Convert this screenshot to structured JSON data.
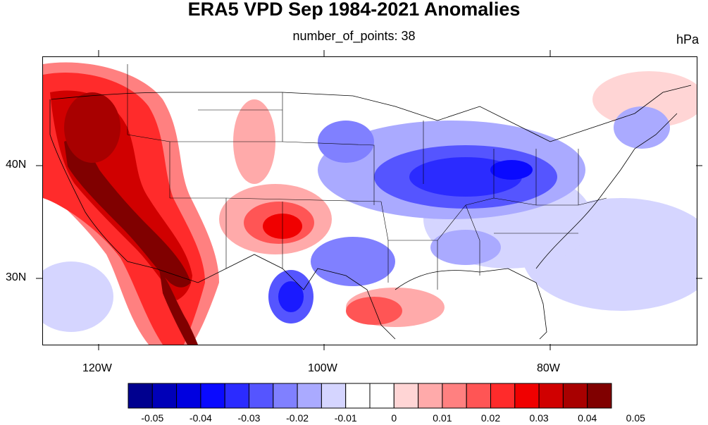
{
  "title": "ERA5 VPD Sep 1984-2021 Anomalies",
  "subtitle": "number_of_points: 38",
  "units": "hPa",
  "axes": {
    "lat_labels": [
      "40N",
      "30N"
    ],
    "lon_labels": [
      "120W",
      "100W",
      "80W"
    ]
  },
  "colorbar": {
    "colors": [
      "#00008f",
      "#0000b8",
      "#0000e0",
      "#0a0aff",
      "#2b2bff",
      "#5555ff",
      "#8080ff",
      "#aaaaff",
      "#d5d5ff",
      "#ffffff",
      "#ffffff",
      "#ffd5d5",
      "#ffaaaa",
      "#ff8080",
      "#ff5555",
      "#ff2b2b",
      "#f00000",
      "#d00000",
      "#a80000",
      "#800000"
    ],
    "labels": [
      "-0.05",
      "-0.04",
      "-0.03",
      "-0.02",
      "-0.01",
      "0",
      "0.01",
      "0.02",
      "0.03",
      "0.04",
      "0.05"
    ]
  },
  "map_features": [
    {
      "name": "west-coast-positive-anomaly",
      "level": 0.05,
      "color": "#800000"
    },
    {
      "name": "southwest-positive-anomaly",
      "level": 0.04,
      "color": "#c00000"
    },
    {
      "name": "ohio-valley-negative-anomaly",
      "level": -0.03,
      "color": "#2b2bff"
    },
    {
      "name": "west-texas-negative-anomaly",
      "level": -0.03,
      "color": "#1a1aff"
    },
    {
      "name": "gulf-coast-positive-anomaly",
      "level": 0.02,
      "color": "#ff8080"
    }
  ]
}
